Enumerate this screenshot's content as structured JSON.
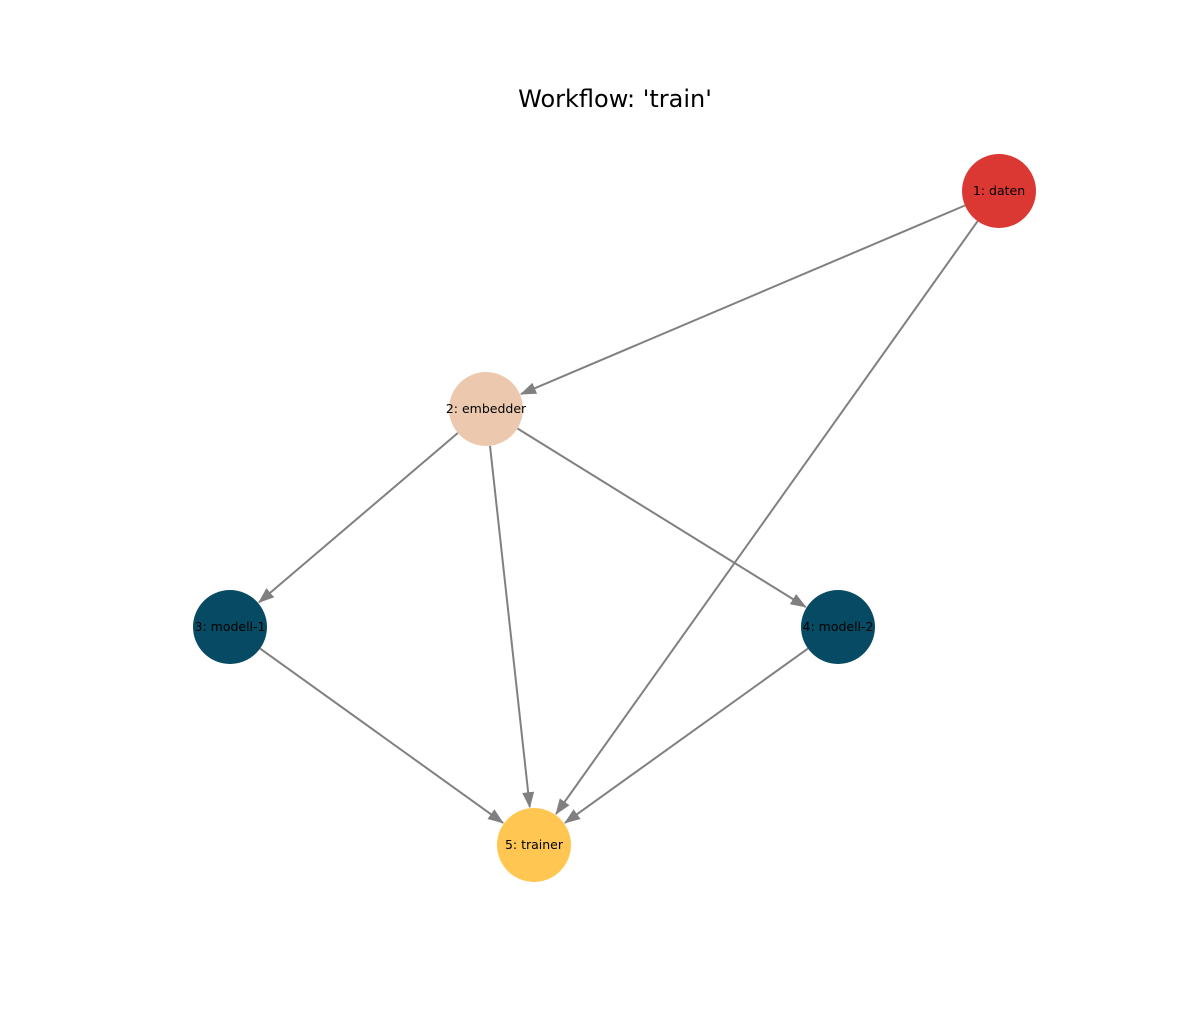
{
  "title": "Workflow: 'train'",
  "graph": {
    "nodes": [
      {
        "id": "1",
        "label": "1: daten",
        "color": "#db3833"
      },
      {
        "id": "2",
        "label": "2: embedder",
        "color": "#ecc9ae"
      },
      {
        "id": "3",
        "label": "3: modell-1",
        "color": "#064b63"
      },
      {
        "id": "4",
        "label": "4: modell-2",
        "color": "#064b63"
      },
      {
        "id": "5",
        "label": "5: trainer",
        "color": "#ffc752"
      }
    ],
    "edges": [
      {
        "from": "1",
        "to": "2"
      },
      {
        "from": "1",
        "to": "5"
      },
      {
        "from": "2",
        "to": "3"
      },
      {
        "from": "2",
        "to": "4"
      },
      {
        "from": "2",
        "to": "5"
      },
      {
        "from": "3",
        "to": "5"
      },
      {
        "from": "4",
        "to": "5"
      }
    ],
    "edge_color": "#808080"
  }
}
